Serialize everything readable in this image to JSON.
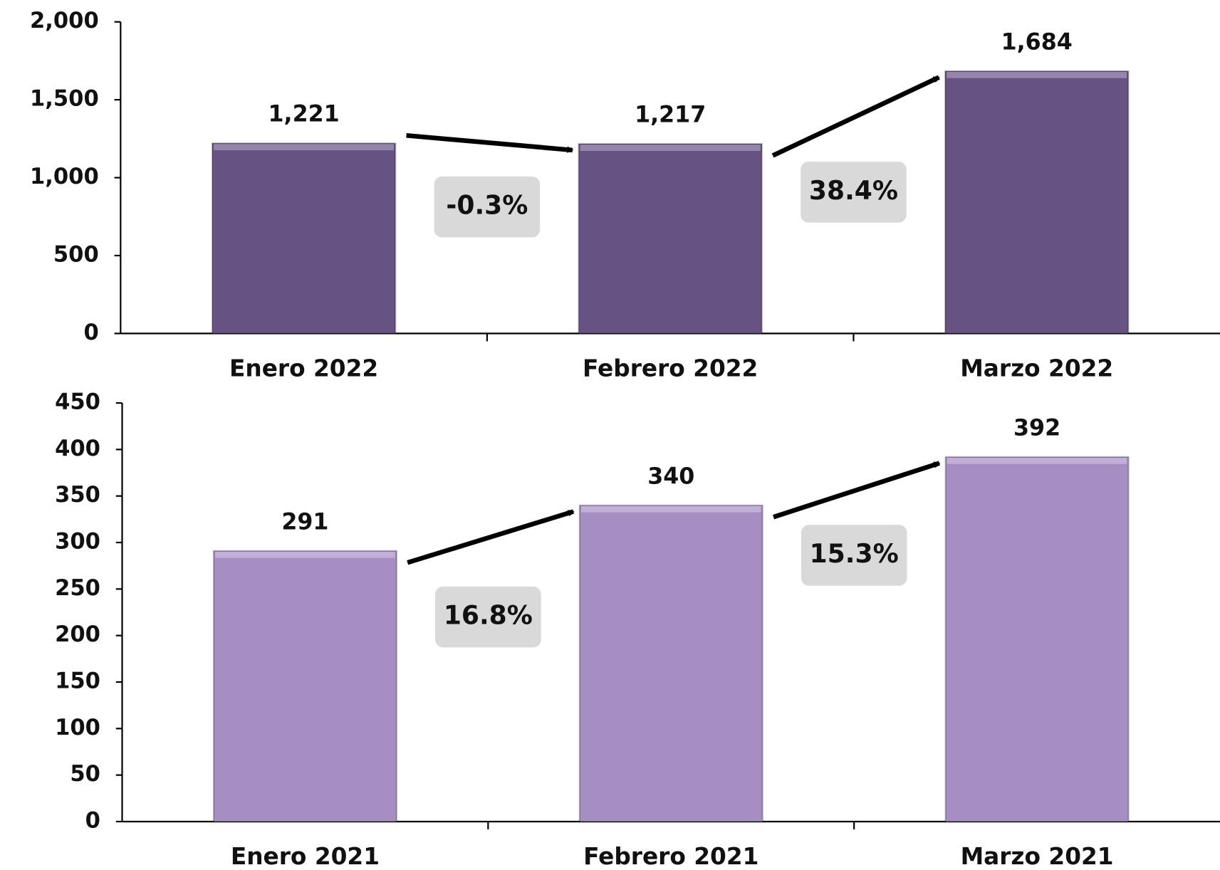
{
  "chart_data": [
    {
      "type": "bar",
      "categories": [
        "Enero 2022",
        "Febrero 2022",
        "Marzo 2022"
      ],
      "values": [
        1221,
        1217,
        1684
      ],
      "value_labels": [
        "1,221",
        "1,217",
        "1,684"
      ],
      "color": "#665283",
      "ylim": [
        0,
        2000
      ],
      "yticks": [
        0,
        500,
        {
          "value": 1000,
          "label": "1,000"
        },
        {
          "value": 1500,
          "label": "1,500"
        },
        {
          "value": 2000,
          "label": "2,000"
        }
      ],
      "annotations": [
        "-0.3%",
        "38.4%"
      ]
    },
    {
      "type": "bar",
      "categories": [
        "Enero 2021",
        "Febrero 2021",
        "Marzo 2021"
      ],
      "values": [
        291,
        340,
        392
      ],
      "color": "#a68ec3",
      "ylim": [
        0,
        450
      ],
      "yticks": [
        0,
        50,
        100,
        150,
        200,
        250,
        300,
        350,
        400,
        450
      ],
      "annotations": [
        "16.8%",
        "15.3%"
      ]
    }
  ]
}
